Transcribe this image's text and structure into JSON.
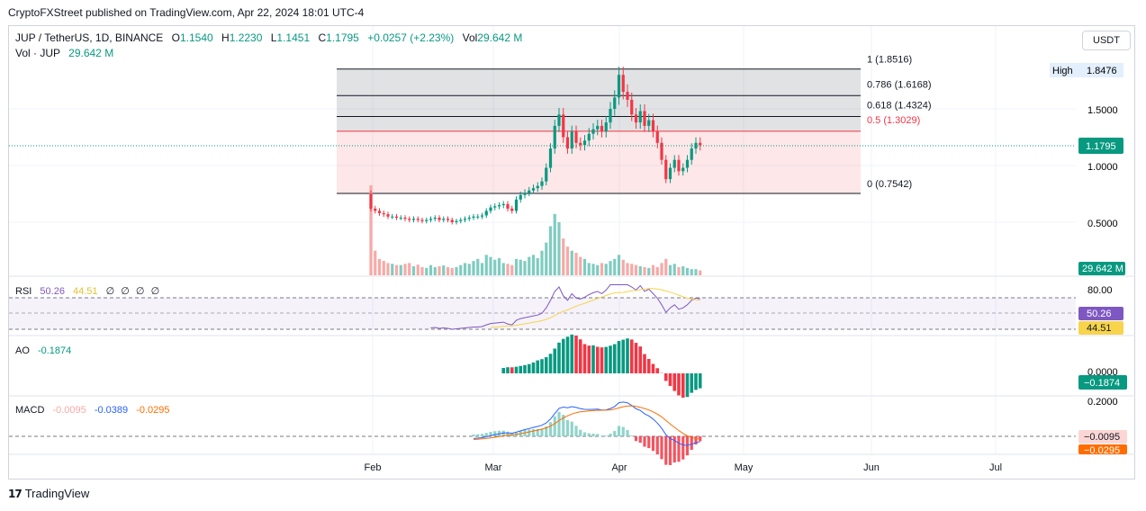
{
  "caption": "CryptoFXStreet published on TradingView.com, Apr 22, 2024 18:01 UTC-4",
  "currency_button": "USDT",
  "footer": {
    "logo": "𝟭𝟳",
    "brand": "TradingView"
  },
  "header": {
    "symbol": "JUP / TetherUS, 1D, BINANCE",
    "o_label": "O",
    "o_value": "1.1540",
    "h_label": "H",
    "h_value": "1.2230",
    "l_label": "L",
    "l_value": "1.1451",
    "c_label": "C",
    "c_value": "1.1795",
    "change": "+0.0257 (+2.23%)",
    "vol_label": "Vol",
    "vol_value": "29.642 M",
    "vol_line_label": "Vol · JUP",
    "vol_line_value": "29.642 M"
  },
  "colors": {
    "up": "#089981",
    "down": "#f23645",
    "up_vol": "#7fccc0",
    "down_vol": "#f7a9a7",
    "rsi": "#7e57c2",
    "rsi_ma": "#f7d44c",
    "macd": "#2962ff",
    "signal": "#ff6d00"
  },
  "chart_data": [
    {
      "type": "candlestick",
      "title": "JUP / TetherUS, 1D, BINANCE",
      "x_axis_labels": [
        "Feb",
        "Mar",
        "Apr",
        "May",
        "Jun",
        "Jul"
      ],
      "price_ticks": [
        "1.5000",
        "1.0000",
        "0.5000"
      ],
      "last_price": "1.1795",
      "high_label": "High",
      "high_value": "1.8476",
      "volume_label": "29.642 M",
      "fib_levels": [
        {
          "label": "1 (1.8516)",
          "value": 1.8516
        },
        {
          "label": "0.786 (1.6168)",
          "value": 1.6168
        },
        {
          "label": "0.618 (1.4324)",
          "value": 1.4324
        },
        {
          "label": "0.5 (1.3029)",
          "value": 1.3029
        },
        {
          "label": "0 (0.7542)",
          "value": 0.7542
        }
      ],
      "closes": [
        0.62,
        0.6,
        0.58,
        0.57,
        0.55,
        0.55,
        0.54,
        0.54,
        0.53,
        0.52,
        0.53,
        0.52,
        0.51,
        0.52,
        0.53,
        0.54,
        0.52,
        0.53,
        0.52,
        0.5,
        0.51,
        0.52,
        0.53,
        0.54,
        0.55,
        0.55,
        0.56,
        0.6,
        0.63,
        0.64,
        0.65,
        0.66,
        0.62,
        0.6,
        0.7,
        0.74,
        0.76,
        0.78,
        0.8,
        0.82,
        0.86,
        0.98,
        1.15,
        1.35,
        1.45,
        1.25,
        1.15,
        1.3,
        1.2,
        1.18,
        1.22,
        1.28,
        1.32,
        1.35,
        1.3,
        1.38,
        1.5,
        1.6,
        1.8,
        1.65,
        1.58,
        1.45,
        1.38,
        1.48,
        1.35,
        1.4,
        1.3,
        1.2,
        1.05,
        0.88,
        0.98,
        1.05,
        0.95,
        0.98,
        1.05,
        1.15,
        1.2,
        1.18
      ],
      "volumes": [
        220,
        60,
        40,
        35,
        30,
        28,
        25,
        25,
        28,
        30,
        22,
        26,
        20,
        18,
        25,
        20,
        22,
        24,
        20,
        18,
        20,
        25,
        30,
        28,
        35,
        40,
        30,
        50,
        45,
        38,
        42,
        30,
        28,
        25,
        40,
        38,
        35,
        45,
        50,
        42,
        60,
        80,
        120,
        150,
        130,
        90,
        70,
        60,
        55,
        45,
        40,
        30,
        28,
        25,
        30,
        28,
        35,
        40,
        50,
        38,
        30,
        28,
        25,
        22,
        20,
        18,
        25,
        20,
        30,
        40,
        25,
        28,
        20,
        22,
        18,
        15,
        15,
        12
      ],
      "rsi": {
        "label": "RSI",
        "value": "50.26",
        "ma_value": "44.51",
        "tick": "80.00",
        "blanks": [
          "∅",
          "∅",
          "∅",
          "∅"
        ]
      },
      "ao": {
        "label": "AO",
        "value": "-0.1874",
        "tick": "0.0000",
        "badge": "−0.1874"
      },
      "macd": {
        "label": "MACD",
        "hist": "-0.0095",
        "macd": "-0.0389",
        "signal": "-0.0295",
        "tick": "0.2000",
        "badge_hist": "−0.0095",
        "badge_signal": "−0.0295"
      }
    }
  ]
}
